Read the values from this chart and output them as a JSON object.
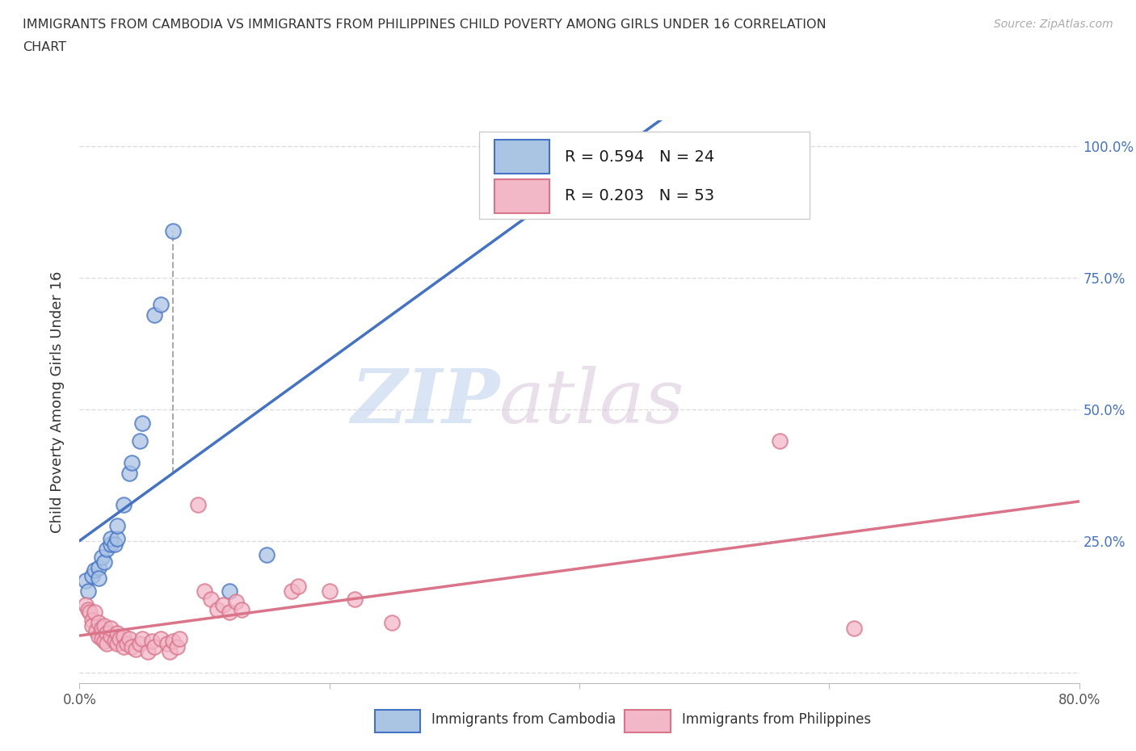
{
  "title_line1": "IMMIGRANTS FROM CAMBODIA VS IMMIGRANTS FROM PHILIPPINES CHILD POVERTY AMONG GIRLS UNDER 16 CORRELATION",
  "title_line2": "CHART",
  "source_text": "Source: ZipAtlas.com",
  "ylabel": "Child Poverty Among Girls Under 16",
  "xlim": [
    0.0,
    0.8
  ],
  "ylim": [
    -0.02,
    1.05
  ],
  "watermark_zip": "ZIP",
  "watermark_atlas": "atlas",
  "legend_R1": "R = 0.594",
  "legend_N1": "N = 24",
  "legend_R2": "R = 0.203",
  "legend_N2": "N = 53",
  "cambodia_color": "#aac4e4",
  "philippines_color": "#f2b8c8",
  "cambodia_line_color": "#4472c4",
  "philippines_line_color": "#d9748a",
  "cambodia_scatter": [
    [
      0.005,
      0.175
    ],
    [
      0.007,
      0.155
    ],
    [
      0.01,
      0.185
    ],
    [
      0.012,
      0.195
    ],
    [
      0.015,
      0.2
    ],
    [
      0.015,
      0.18
    ],
    [
      0.018,
      0.22
    ],
    [
      0.02,
      0.21
    ],
    [
      0.022,
      0.235
    ],
    [
      0.025,
      0.245
    ],
    [
      0.025,
      0.255
    ],
    [
      0.028,
      0.245
    ],
    [
      0.03,
      0.255
    ],
    [
      0.03,
      0.28
    ],
    [
      0.035,
      0.32
    ],
    [
      0.04,
      0.38
    ],
    [
      0.042,
      0.4
    ],
    [
      0.048,
      0.44
    ],
    [
      0.05,
      0.475
    ],
    [
      0.06,
      0.68
    ],
    [
      0.065,
      0.7
    ],
    [
      0.075,
      0.84
    ],
    [
      0.12,
      0.155
    ],
    [
      0.15,
      0.225
    ]
  ],
  "philippines_scatter": [
    [
      0.005,
      0.13
    ],
    [
      0.007,
      0.12
    ],
    [
      0.008,
      0.115
    ],
    [
      0.01,
      0.1
    ],
    [
      0.01,
      0.09
    ],
    [
      0.012,
      0.115
    ],
    [
      0.013,
      0.08
    ],
    [
      0.015,
      0.095
    ],
    [
      0.015,
      0.07
    ],
    [
      0.018,
      0.085
    ],
    [
      0.018,
      0.065
    ],
    [
      0.02,
      0.09
    ],
    [
      0.02,
      0.06
    ],
    [
      0.022,
      0.075
    ],
    [
      0.022,
      0.055
    ],
    [
      0.025,
      0.07
    ],
    [
      0.025,
      0.085
    ],
    [
      0.028,
      0.06
    ],
    [
      0.03,
      0.075
    ],
    [
      0.03,
      0.055
    ],
    [
      0.032,
      0.065
    ],
    [
      0.035,
      0.07
    ],
    [
      0.035,
      0.05
    ],
    [
      0.038,
      0.055
    ],
    [
      0.04,
      0.065
    ],
    [
      0.042,
      0.05
    ],
    [
      0.045,
      0.045
    ],
    [
      0.048,
      0.055
    ],
    [
      0.05,
      0.065
    ],
    [
      0.055,
      0.04
    ],
    [
      0.058,
      0.06
    ],
    [
      0.06,
      0.05
    ],
    [
      0.065,
      0.065
    ],
    [
      0.07,
      0.055
    ],
    [
      0.072,
      0.04
    ],
    [
      0.075,
      0.06
    ],
    [
      0.078,
      0.05
    ],
    [
      0.08,
      0.065
    ],
    [
      0.095,
      0.32
    ],
    [
      0.1,
      0.155
    ],
    [
      0.105,
      0.14
    ],
    [
      0.11,
      0.12
    ],
    [
      0.115,
      0.13
    ],
    [
      0.12,
      0.115
    ],
    [
      0.125,
      0.135
    ],
    [
      0.13,
      0.12
    ],
    [
      0.17,
      0.155
    ],
    [
      0.175,
      0.165
    ],
    [
      0.2,
      0.155
    ],
    [
      0.22,
      0.14
    ],
    [
      0.25,
      0.095
    ],
    [
      0.56,
      0.44
    ],
    [
      0.62,
      0.085
    ]
  ],
  "background_color": "#ffffff",
  "grid_color": "#dddddd"
}
